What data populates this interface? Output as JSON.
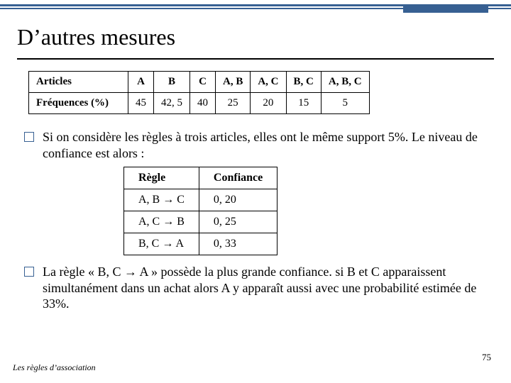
{
  "title": "D’autres mesures",
  "slide_number": "75",
  "footer": "Les règles d’association",
  "colors": {
    "accent": "#376092",
    "text": "#000000",
    "bg": "#ffffff"
  },
  "freq_table": {
    "row_labels": [
      "Articles",
      "Fréquences (%)"
    ],
    "columns": [
      "A",
      "B",
      "C",
      "A, B",
      "A, C",
      "B, C",
      "A, B, C"
    ],
    "values": [
      "45",
      "42, 5",
      "40",
      "25",
      "20",
      "15",
      "5"
    ]
  },
  "bullet1": "Si on considère les règles à trois articles, elles ont le même support 5%. Le niveau de confiance est alors :",
  "rules_table": {
    "headers": [
      "Règle",
      "Confiance"
    ],
    "rows": [
      [
        "A, B → C",
        "0, 20"
      ],
      [
        "A, C → B",
        "0, 25"
      ],
      [
        "B, C → A",
        "0, 33"
      ]
    ]
  },
  "bullet2": "La règle « B, C → A » possède la plus grande confiance. si B et C apparaissent simultanément dans un achat alors A y apparaît aussi avec une probabilité estimée de 33%."
}
